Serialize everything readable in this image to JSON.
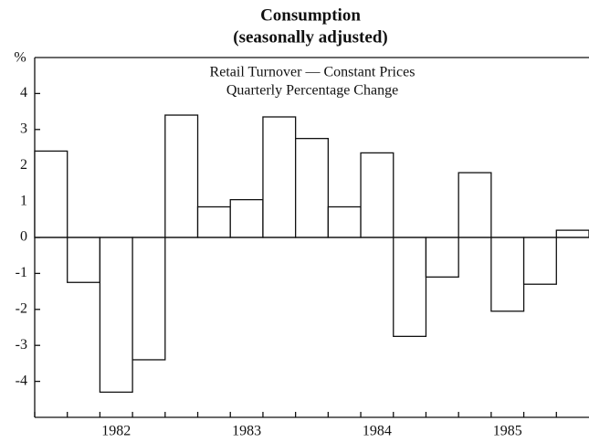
{
  "chart_data": {
    "type": "bar",
    "title": "Consumption",
    "subtitle": "(seasonally adjusted)",
    "annotations": [
      "Retail Turnover — Constant Prices",
      "Quarterly Percentage Change"
    ],
    "y_label": "%",
    "categories": [
      null,
      null,
      "1982",
      null,
      null,
      null,
      "1983",
      null,
      null,
      null,
      "1984",
      null,
      null,
      null,
      "1985",
      null,
      null
    ],
    "values": [
      2.4,
      -1.25,
      -4.3,
      -3.4,
      3.4,
      0.85,
      1.05,
      3.35,
      2.75,
      0.85,
      2.35,
      -2.75,
      -1.1,
      1.8,
      -2.05,
      -1.3,
      0.2
    ],
    "color": "#ffffff",
    "ylim": [
      -5,
      5
    ],
    "yticks": [
      -4,
      -3,
      -2,
      -1,
      0,
      1,
      2,
      3,
      4
    ]
  }
}
